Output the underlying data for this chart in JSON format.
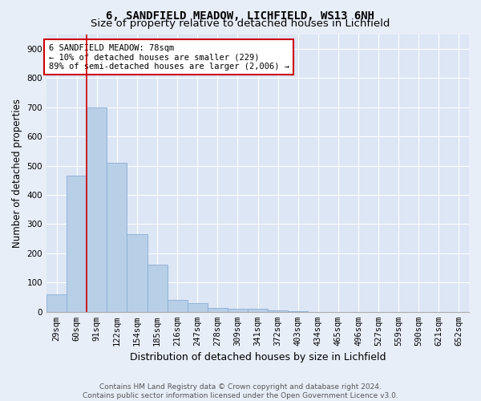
{
  "title_line1": "6, SANDFIELD MEADOW, LICHFIELD, WS13 6NH",
  "title_line2": "Size of property relative to detached houses in Lichfield",
  "xlabel": "Distribution of detached houses by size in Lichfield",
  "ylabel": "Number of detached properties",
  "categories": [
    "29sqm",
    "60sqm",
    "91sqm",
    "122sqm",
    "154sqm",
    "185sqm",
    "216sqm",
    "247sqm",
    "278sqm",
    "309sqm",
    "341sqm",
    "372sqm",
    "403sqm",
    "434sqm",
    "465sqm",
    "496sqm",
    "527sqm",
    "559sqm",
    "590sqm",
    "621sqm",
    "652sqm"
  ],
  "values": [
    60,
    465,
    700,
    510,
    265,
    160,
    40,
    30,
    12,
    10,
    10,
    5,
    3,
    0,
    0,
    0,
    0,
    0,
    0,
    0,
    0
  ],
  "bar_color": "#b8cfe8",
  "bar_edge_color": "#8aadd4",
  "vline_x": 1.5,
  "vline_color": "#cc0000",
  "annotation_text": "6 SANDFIELD MEADOW: 78sqm\n← 10% of detached houses are smaller (229)\n89% of semi-detached houses are larger (2,006) →",
  "annotation_box_facecolor": "#ffffff",
  "annotation_box_edgecolor": "#cc0000",
  "ylim": [
    0,
    950
  ],
  "yticks": [
    0,
    100,
    200,
    300,
    400,
    500,
    600,
    700,
    800,
    900
  ],
  "plot_bg_color": "#dce6f5",
  "fig_bg_color": "#e8eef8",
  "grid_color": "#ffffff",
  "footer_line1": "Contains HM Land Registry data © Crown copyright and database right 2024.",
  "footer_line2": "Contains public sector information licensed under the Open Government Licence v3.0.",
  "title_fontsize": 10,
  "subtitle_fontsize": 9.5,
  "xlabel_fontsize": 9,
  "ylabel_fontsize": 8.5,
  "tick_fontsize": 7.5,
  "annot_fontsize": 7.5,
  "footer_fontsize": 6.5
}
